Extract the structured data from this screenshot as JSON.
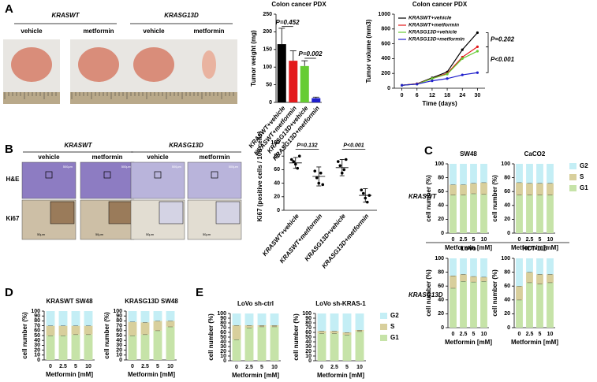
{
  "labels": {
    "panels": [
      "A",
      "B",
      "C",
      "D",
      "E"
    ],
    "a_genotypes": [
      "KRASWT",
      "KRASG13D"
    ],
    "a_treatments": [
      "vehicle",
      "metformin",
      "vehicle",
      "metformin"
    ],
    "b_genotypes": [
      "KRASWT",
      "KRASG13D"
    ],
    "b_treatments": [
      "vehicle",
      "metformin",
      "vehicle",
      "metformin"
    ],
    "b_stains": [
      "H&E",
      "Ki67"
    ],
    "c_rows": [
      "KRASWT",
      "KRASG13D"
    ],
    "scale_bars": [
      "500μm",
      "50μm"
    ]
  },
  "chart_data": [
    {
      "type": "bar",
      "title": "Colon cancer PDX",
      "y_label": "Tumor weight (mg)",
      "categories": [
        "KRASWT+vehicle",
        "KRASWT+metformin",
        "KRASG13D+vehicle",
        "KRASG13D+metformin"
      ],
      "values": [
        165,
        118,
        103,
        12
      ],
      "errors": [
        45,
        28,
        15,
        3
      ],
      "colors": [
        "#000000",
        "#e31a1c",
        "#66cc33",
        "#1f1fcc"
      ],
      "ylim": [
        0,
        250
      ],
      "yticks": [
        0,
        50,
        100,
        150,
        200,
        250
      ],
      "annotations": [
        "P=0.452",
        "P=0.002"
      ]
    },
    {
      "type": "line",
      "title": "Colon cancer PDX",
      "y_label": "Tumor volume (mm3)",
      "x_label": "Time (days)",
      "x": [
        0,
        6,
        12,
        18,
        24,
        30
      ],
      "xlim": [
        -3,
        33
      ],
      "xticks": [
        0,
        6,
        12,
        18,
        24,
        30
      ],
      "ylim": [
        0,
        1000
      ],
      "yticks": [
        0,
        200,
        400,
        600,
        800,
        1000
      ],
      "legend": "upper left",
      "series": [
        {
          "name": "KRASWT+vehicle",
          "color": "#000000",
          "values": [
            40,
            60,
            140,
            220,
            520,
            750
          ]
        },
        {
          "name": "KRASWT+metformin",
          "color": "#e31a1c",
          "values": [
            40,
            60,
            130,
            200,
            420,
            560
          ]
        },
        {
          "name": "KRASG13D+vehicle",
          "color": "#66cc33",
          "values": [
            40,
            55,
            130,
            190,
            400,
            500
          ]
        },
        {
          "name": "KRASG13D+metformin",
          "color": "#1f1fcc",
          "values": [
            40,
            55,
            100,
            130,
            180,
            210
          ]
        }
      ],
      "annotations": [
        "P=0.202",
        "P<0.001"
      ]
    },
    {
      "type": "dot",
      "y_label": "Ki67 (positive cells / 100 cells)",
      "categories": [
        "KRASWT+vehicle",
        "KRASWT+metformin",
        "KRASG13D+vehicle",
        "KRASG13D+metformin"
      ],
      "values": [
        70,
        50,
        63,
        22
      ],
      "errors": [
        8,
        14,
        12,
        10
      ],
      "points": [
        [
          75,
          72,
          68,
          62,
          80
        ],
        [
          58,
          48,
          40,
          55,
          38
        ],
        [
          72,
          66,
          55,
          60,
          75
        ],
        [
          30,
          25,
          18,
          12,
          22
        ]
      ],
      "ylim": [
        0,
        100
      ],
      "yticks": [
        0,
        20,
        40,
        60,
        80,
        100
      ],
      "annotations": [
        "P=0.132",
        "P<0.001"
      ]
    },
    {
      "type": "stacked",
      "title": "SW48",
      "x_label": "Metformin [mM]",
      "y_label": "cell number (%)",
      "categories": [
        "0",
        "2.5",
        "5",
        "10"
      ],
      "ylim": [
        0,
        100
      ],
      "yticks": [
        0,
        20,
        40,
        60,
        80,
        100
      ],
      "series": [
        {
          "name": "G1",
          "color": "#c6e3a8",
          "values": [
            55,
            55,
            57,
            56
          ]
        },
        {
          "name": "S",
          "color": "#d8cf9c",
          "values": [
            15,
            15,
            15,
            17
          ]
        },
        {
          "name": "G2",
          "color": "#c4eef5",
          "values": [
            30,
            30,
            28,
            27
          ]
        }
      ]
    },
    {
      "type": "stacked",
      "title": "CaCO2",
      "x_label": "Metformin [mM]",
      "y_label": "cell number (%)",
      "categories": [
        "0",
        "2.5",
        "5",
        "10"
      ],
      "ylim": [
        0,
        100
      ],
      "yticks": [
        0,
        20,
        40,
        60,
        80,
        100
      ],
      "legend": "right",
      "series": [
        {
          "name": "G1",
          "color": "#c6e3a8",
          "values": [
            55,
            55,
            55,
            55
          ]
        },
        {
          "name": "S",
          "color": "#d8cf9c",
          "values": [
            18,
            17,
            17,
            17
          ]
        },
        {
          "name": "G2",
          "color": "#c4eef5",
          "values": [
            27,
            28,
            28,
            28
          ]
        }
      ]
    },
    {
      "type": "stacked",
      "title": "LoVo",
      "x_label": "Metformin [mM]",
      "y_label": "cell number (%)",
      "categories": [
        "0",
        "2.5",
        "5",
        "10"
      ],
      "ylim": [
        0,
        100
      ],
      "yticks": [
        0,
        20,
        40,
        60,
        80,
        100
      ],
      "series": [
        {
          "name": "G1",
          "color": "#c6e3a8",
          "values": [
            57,
            67,
            66,
            67
          ]
        },
        {
          "name": "S",
          "color": "#d8cf9c",
          "values": [
            18,
            10,
            8,
            6
          ]
        },
        {
          "name": "G2",
          "color": "#c4eef5",
          "values": [
            25,
            23,
            26,
            27
          ]
        }
      ]
    },
    {
      "type": "stacked",
      "title": "HCT-116",
      "x_label": "Metformin [mM]",
      "y_label": "cell number (%)",
      "categories": [
        "0",
        "2.5",
        "5",
        "10"
      ],
      "ylim": [
        0,
        100
      ],
      "yticks": [
        0,
        20,
        40,
        60,
        80,
        100
      ],
      "series": [
        {
          "name": "G1",
          "color": "#c6e3a8",
          "values": [
            40,
            65,
            63,
            65
          ]
        },
        {
          "name": "S",
          "color": "#d8cf9c",
          "values": [
            20,
            15,
            14,
            12
          ]
        },
        {
          "name": "G2",
          "color": "#c4eef5",
          "values": [
            40,
            20,
            23,
            23
          ]
        }
      ]
    },
    {
      "type": "stacked",
      "title": "KRASWT SW48",
      "x_label": "Metformin [mM]",
      "y_label": "cell number (%)",
      "categories": [
        "0",
        "2.5",
        "5",
        "10"
      ],
      "ylim": [
        0,
        100
      ],
      "yticks": [
        0,
        10,
        20,
        30,
        40,
        50,
        60,
        70,
        80,
        90,
        100
      ],
      "series": [
        {
          "name": "G1",
          "color": "#c6e3a8",
          "values": [
            50,
            50,
            52,
            52
          ]
        },
        {
          "name": "S",
          "color": "#d8cf9c",
          "values": [
            20,
            20,
            18,
            18
          ]
        },
        {
          "name": "G2",
          "color": "#c4eef5",
          "values": [
            30,
            30,
            30,
            30
          ]
        }
      ]
    },
    {
      "type": "stacked",
      "title": "KRASG13D SW48",
      "x_label": "Metformin [mM]",
      "y_label": "cell number (%)",
      "categories": [
        "0",
        "2.5",
        "5",
        "10"
      ],
      "ylim": [
        0,
        100
      ],
      "yticks": [
        0,
        10,
        20,
        30,
        40,
        50,
        60,
        70,
        80,
        90,
        100
      ],
      "series": [
        {
          "name": "G1",
          "color": "#c6e3a8",
          "values": [
            50,
            52,
            60,
            68
          ]
        },
        {
          "name": "S",
          "color": "#d8cf9c",
          "values": [
            28,
            25,
            20,
            12
          ]
        },
        {
          "name": "G2",
          "color": "#c4eef5",
          "values": [
            22,
            23,
            20,
            20
          ]
        }
      ]
    },
    {
      "type": "stacked",
      "title": "LoVo sh-ctrl",
      "x_label": "Metformin [mM]",
      "y_label": "cell number (%)",
      "categories": [
        "0",
        "2.5",
        "5",
        "10"
      ],
      "ylim": [
        0,
        100
      ],
      "yticks": [
        0,
        10,
        20,
        30,
        40,
        50,
        60,
        70,
        80,
        90,
        100
      ],
      "series": [
        {
          "name": "G1",
          "color": "#c6e3a8",
          "values": [
            45,
            70,
            72,
            72
          ]
        },
        {
          "name": "S",
          "color": "#d8cf9c",
          "values": [
            30,
            5,
            3,
            3
          ]
        },
        {
          "name": "G2",
          "color": "#c4eef5",
          "values": [
            25,
            25,
            25,
            25
          ]
        }
      ]
    },
    {
      "type": "stacked",
      "title": "LoVo sh-KRAS-1",
      "x_label": "Metformin [mM]",
      "y_label": "cell number (%)",
      "categories": [
        "0",
        "2.5",
        "5",
        "10"
      ],
      "ylim": [
        0,
        100
      ],
      "yticks": [
        0,
        10,
        20,
        30,
        40,
        50,
        60,
        70,
        80,
        90,
        100
      ],
      "legend": "right",
      "series": [
        {
          "name": "G1",
          "color": "#c6e3a8",
          "values": [
            58,
            58,
            55,
            62
          ]
        },
        {
          "name": "S",
          "color": "#d8cf9c",
          "values": [
            5,
            5,
            5,
            3
          ]
        },
        {
          "name": "G2",
          "color": "#c4eef5",
          "values": [
            37,
            37,
            40,
            35
          ]
        }
      ]
    }
  ]
}
